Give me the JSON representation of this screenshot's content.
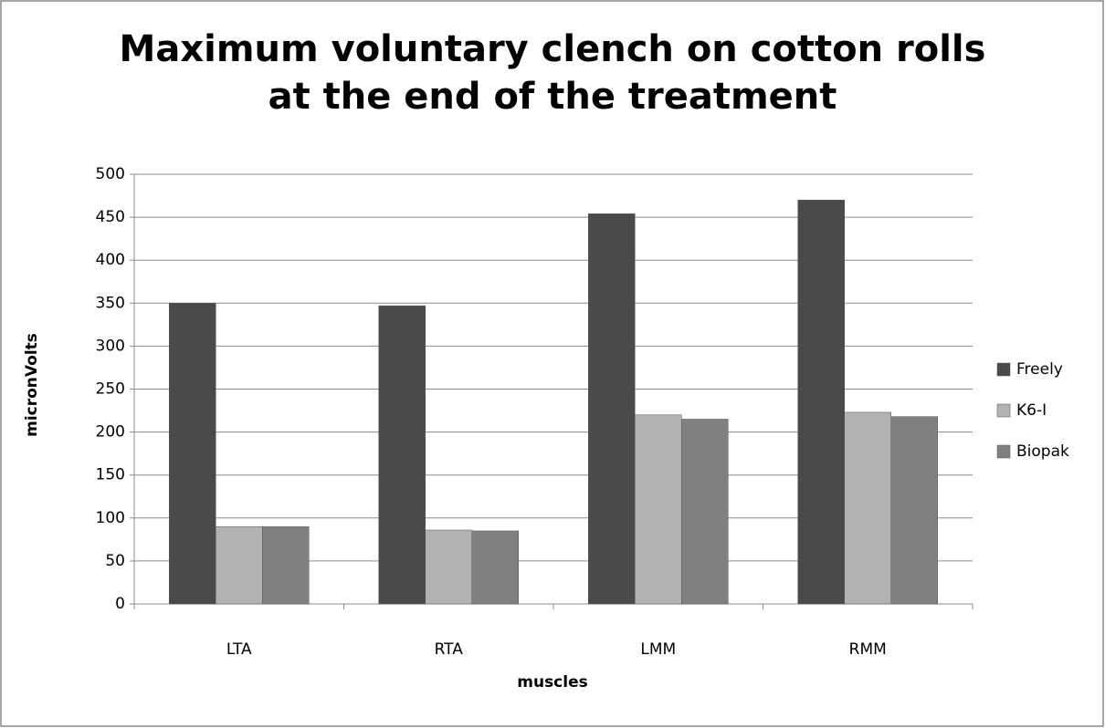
{
  "chart_data": {
    "type": "bar",
    "title": "Maximum voluntary clench on cotton rolls at the end of the treatment",
    "x_label": "muscles",
    "y_label": "micronVolts",
    "categories": [
      "LTA",
      "RTA",
      "LMM",
      "RMM"
    ],
    "series": [
      {
        "name": "Freely",
        "color": "#4a4a4a",
        "values": [
          350,
          347,
          454,
          470
        ]
      },
      {
        "name": "K6-I",
        "color": "#b2b2b2",
        "values": [
          90,
          86,
          220,
          223
        ]
      },
      {
        "name": "Biopak",
        "color": "#808080",
        "values": [
          90,
          85,
          215,
          218
        ]
      }
    ],
    "ylim": [
      0,
      500
    ],
    "yticks": [
      0,
      50,
      100,
      150,
      200,
      250,
      300,
      350,
      400,
      450,
      500
    ],
    "grid": true,
    "legend": "right"
  }
}
